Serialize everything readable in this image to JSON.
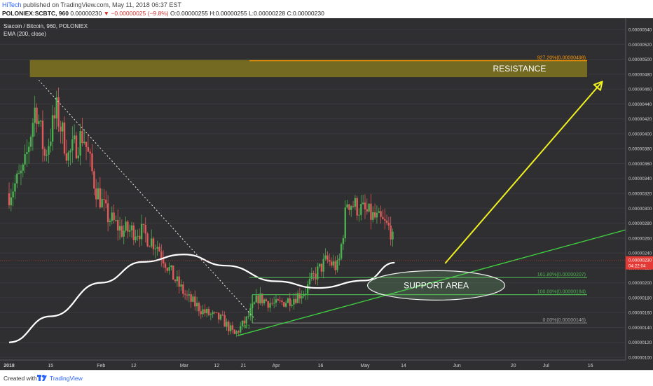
{
  "header": {
    "author": "HiTech",
    "published_text": "published on TradingView.com, May 11, 2018 06:37 EST",
    "symbol": "POLONIEX:SCBTC, 960",
    "last_value": "0.00000230",
    "change": "▼ −0.00000025 (−9.8%)",
    "open": "O:0.00000255",
    "high": "H:0.00000255",
    "low": "L:0.00000228",
    "close": "C:0.00000230"
  },
  "legend": {
    "series_title": "Siacoin / Bitcoin, 960, POLONIEX",
    "indicator": "EMA (200, close)"
  },
  "footer": {
    "created_with": "Created with",
    "brand": "TradingView"
  },
  "colors": {
    "background": "#2f2f32",
    "up_candle": "#4caf50",
    "down_candle": "#e05a5a",
    "ema": "#ffffff",
    "resistance_zone": "#807420",
    "fib_line": "#3fd03f",
    "trendline": "#3fd03f",
    "arrow": "#f0f020",
    "price_tag": "#e53935"
  },
  "chart_data": {
    "type": "candlestick",
    "title": "Siacoin / Bitcoin, 960, POLONIEX",
    "x_ticks": [
      "2018",
      "15",
      "Feb",
      "12",
      "Mar",
      "12",
      "21",
      "Apr",
      "16",
      "May",
      "14",
      "Jun",
      "20",
      "Jul",
      "16"
    ],
    "y_ticks": [
      "0.00000100",
      "0.00000120",
      "0.00000140",
      "0.00000160",
      "0.00000180",
      "0.00000200",
      "0.00000220",
      "0.00000240",
      "0.00000260",
      "0.00000280",
      "0.00000300",
      "0.00000320",
      "0.00000340",
      "0.00000360",
      "0.00000380",
      "0.00000400",
      "0.00000420",
      "0.00000440",
      "0.00000460",
      "0.00000480",
      "0.00000500",
      "0.00000520",
      "0.00000540"
    ],
    "ylim": [
      9.8e-07,
      5.48e-06
    ],
    "last_price": "0.00000230",
    "countdown": "04:22:04",
    "price_path": [
      {
        "date": "2018-01-01",
        "price": 3.2e-06
      },
      {
        "date": "2018-01-06",
        "price": 3.5e-06
      },
      {
        "date": "2018-01-10",
        "price": 4.4e-06
      },
      {
        "date": "2018-01-13",
        "price": 3.7e-06
      },
      {
        "date": "2018-01-17",
        "price": 4.3e-06
      },
      {
        "date": "2018-01-21",
        "price": 3.7e-06
      },
      {
        "date": "2018-01-26",
        "price": 4e-06
      },
      {
        "date": "2018-01-30",
        "price": 3.3e-06
      },
      {
        "date": "2018-02-03",
        "price": 2.9e-06
      },
      {
        "date": "2018-02-08",
        "price": 2.7e-06
      },
      {
        "date": "2018-02-14",
        "price": 2.7e-06
      },
      {
        "date": "2018-02-20",
        "price": 2.5e-06
      },
      {
        "date": "2018-02-25",
        "price": 2.1e-06
      },
      {
        "date": "2018-03-02",
        "price": 1.8e-06
      },
      {
        "date": "2018-03-08",
        "price": 1.6e-06
      },
      {
        "date": "2018-03-14",
        "price": 1.5e-06
      },
      {
        "date": "2018-03-18",
        "price": 1.3e-06
      },
      {
        "date": "2018-03-22",
        "price": 1.5e-06
      },
      {
        "date": "2018-03-26",
        "price": 1.8e-06
      },
      {
        "date": "2018-04-01",
        "price": 1.7e-06
      },
      {
        "date": "2018-04-07",
        "price": 1.8e-06
      },
      {
        "date": "2018-04-11",
        "price": 1.9e-06
      },
      {
        "date": "2018-04-14",
        "price": 2.1e-06
      },
      {
        "date": "2018-04-18",
        "price": 2.3e-06
      },
      {
        "date": "2018-04-22",
        "price": 2.2e-06
      },
      {
        "date": "2018-04-25",
        "price": 3.1e-06
      },
      {
        "date": "2018-04-29",
        "price": 3e-06
      },
      {
        "date": "2018-05-03",
        "price": 2.9e-06
      },
      {
        "date": "2018-05-07",
        "price": 2.8e-06
      },
      {
        "date": "2018-05-10",
        "price": 2.7e-06
      },
      {
        "date": "2018-05-11",
        "price": 2.3e-06
      }
    ],
    "ema_200": [
      {
        "date": "2018-01-01",
        "price": 1.2e-06
      },
      {
        "date": "2018-01-15",
        "price": 1.55e-06
      },
      {
        "date": "2018-02-01",
        "price": 2e-06
      },
      {
        "date": "2018-02-15",
        "price": 2.28e-06
      },
      {
        "date": "2018-03-01",
        "price": 2.38e-06
      },
      {
        "date": "2018-03-15",
        "price": 2.23e-06
      },
      {
        "date": "2018-04-01",
        "price": 2.02e-06
      },
      {
        "date": "2018-04-15",
        "price": 1.93e-06
      },
      {
        "date": "2018-05-01",
        "price": 2.03e-06
      },
      {
        "date": "2018-05-11",
        "price": 2.27e-06
      }
    ],
    "zones": [
      {
        "name": "RESISTANCE",
        "low": 4.76e-06,
        "high": 4.99e-06
      }
    ],
    "fib_levels": [
      {
        "label": "927.20%(0.00000498)",
        "price": 4.98e-06,
        "color": "#ff9800"
      },
      {
        "label": "161.80%(0.00000207)",
        "price": 2.07e-06,
        "color": "#4caf50"
      },
      {
        "label": "100.00%(0.00000184)",
        "price": 1.84e-06,
        "color": "#4caf50"
      },
      {
        "label": "0.00%(0.00000146)",
        "price": 1.46e-06,
        "color": "#9e9e9e"
      }
    ],
    "fib_origin_label": "0/1",
    "annotations": [
      {
        "text": "RESISTANCE"
      },
      {
        "text": "SUPPORT AREA"
      }
    ]
  }
}
